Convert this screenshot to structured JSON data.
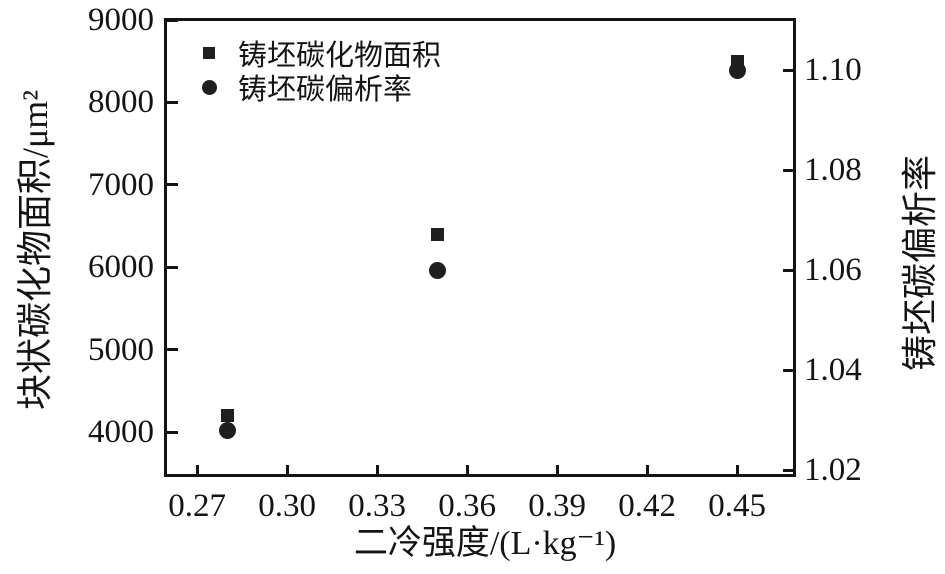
{
  "figure": {
    "background": "#ffffff",
    "ink_color": "#141414",
    "marker_color": "#1f1f1f"
  },
  "chart_data": {
    "type": "scatter",
    "title": "",
    "x": [
      0.28,
      0.35,
      0.45
    ],
    "series": [
      {
        "name": "铸坯碳化物面积",
        "marker": "square",
        "axis": "left",
        "values": [
          4200,
          6400,
          8500
        ]
      },
      {
        "name": "铸坯碳偏析率",
        "marker": "circle",
        "axis": "right",
        "values": [
          1.028,
          1.06,
          1.1
        ]
      }
    ],
    "xlabel": "二冷强度/(L·kg⁻¹)",
    "ylabel_left": "块状碳化物面积/μm²",
    "ylabel_right": "铸坯碳偏析率",
    "xlim": [
      0.2593,
      0.4693
    ],
    "ylim_left": [
      3460,
      9000
    ],
    "ylim_right": [
      1.0186,
      1.11
    ],
    "xticks": [
      0.27,
      0.3,
      0.33,
      0.36,
      0.39,
      0.42,
      0.45
    ],
    "xtick_labels": [
      "0.27",
      "0.30",
      "0.33",
      "0.36",
      "0.39",
      "0.42",
      "0.45"
    ],
    "yticks_left": [
      4000,
      5000,
      6000,
      7000,
      8000,
      9000
    ],
    "ytick_left_labels": [
      "4000",
      "5000",
      "6000",
      "7000",
      "8000",
      "9000"
    ],
    "yticks_right": [
      1.02,
      1.04,
      1.06,
      1.08,
      1.1
    ],
    "ytick_right_labels": [
      "1.02",
      "1.04",
      "1.06",
      "1.08",
      "1.10"
    ],
    "grid": false,
    "legend_position": "upper-left-inside"
  }
}
